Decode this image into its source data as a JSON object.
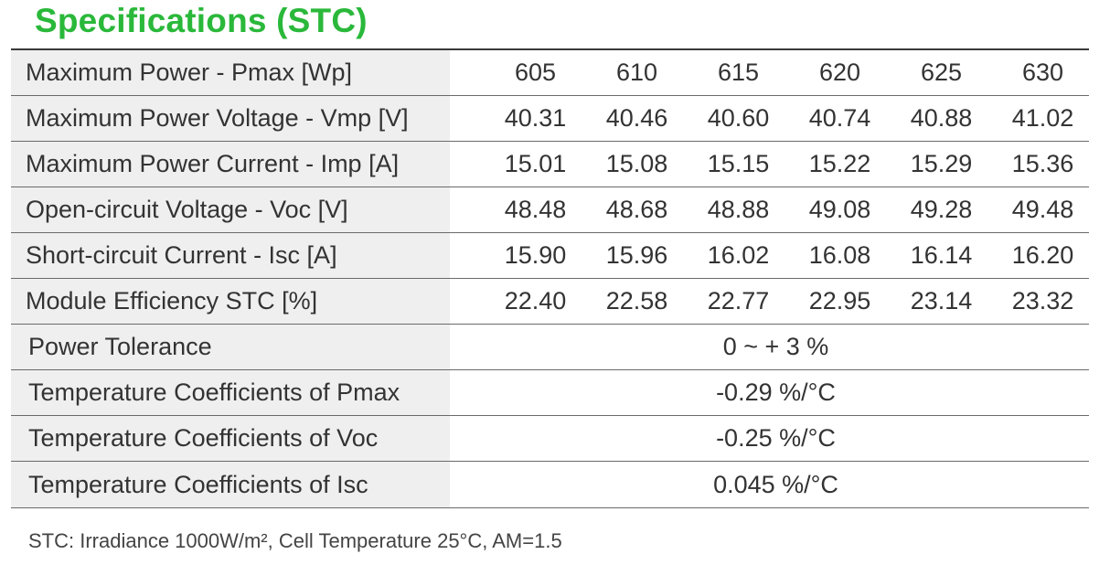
{
  "title": "Specifications (STC)",
  "models": [
    "605",
    "610",
    "615",
    "620",
    "625",
    "630"
  ],
  "rows": [
    {
      "label": "Maximum Power - Pmax  [Wp]",
      "values": [
        "605",
        "610",
        "615",
        "620",
        "625",
        "630"
      ]
    },
    {
      "label": "Maximum Power Voltage - Vmp  [V]",
      "values": [
        "40.31",
        "40.46",
        "40.60",
        "40.74",
        "40.88",
        "41.02"
      ]
    },
    {
      "label": "Maximum Power Current - Imp  [A]",
      "values": [
        "15.01",
        "15.08",
        "15.15",
        "15.22",
        "15.29",
        "15.36"
      ]
    },
    {
      "label": "Open-circuit Voltage - Voc  [V]",
      "values": [
        "48.48",
        "48.68",
        "48.88",
        "49.08",
        "49.28",
        "49.48"
      ]
    },
    {
      "label": "Short-circuit Current - Isc  [A]",
      "values": [
        "15.90",
        "15.96",
        "16.02",
        "16.08",
        "16.14",
        "16.20"
      ]
    },
    {
      "label": "Module Efficiency STC  [%]",
      "values": [
        "22.40",
        "22.58",
        "22.77",
        "22.95",
        "23.14",
        "23.32"
      ]
    }
  ],
  "span_rows": [
    {
      "label": "Power Tolerance",
      "value": "0 ~ + 3 %"
    },
    {
      "label": "Temperature Coefficients of Pmax",
      "value": "-0.29 %/°C"
    },
    {
      "label": "Temperature Coefficients of Voc",
      "value": "-0.25 %/°C"
    },
    {
      "label": "Temperature Coefficients of Isc",
      "value": "0.045 %/°C"
    }
  ],
  "footnote": "STC: Irradiance 1000W/m², Cell Temperature 25°C, AM=1.5",
  "colors": {
    "title": "#2ab83a",
    "label_background": "#efefef",
    "text": "#333333"
  }
}
